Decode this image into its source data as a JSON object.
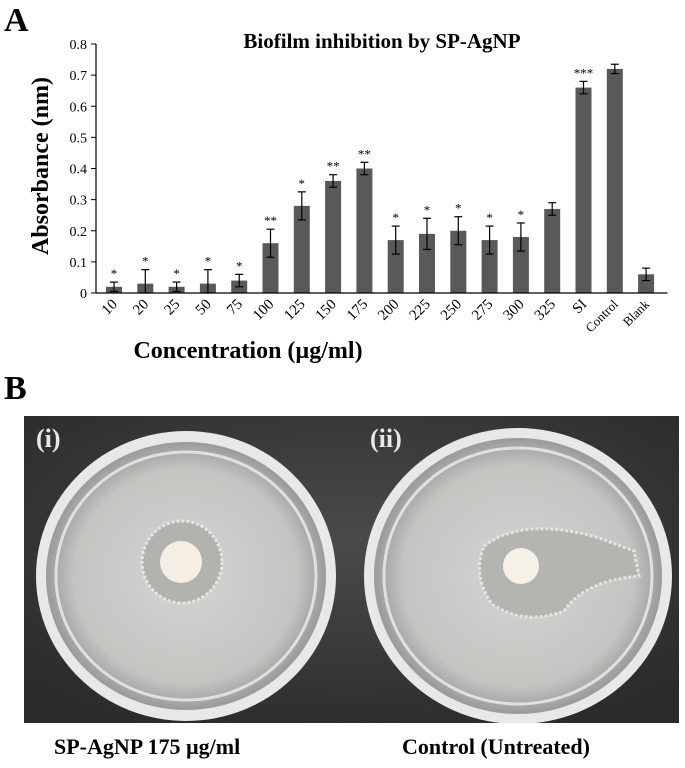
{
  "panel_a_label": "A",
  "panel_b_label": "B",
  "chart_data": {
    "type": "bar",
    "title": "Biofilm inhibition by SP-AgNP",
    "xlabel": "Concentration (µg/ml)",
    "ylabel": "Absorbance (nm)",
    "ylim": [
      0,
      0.8
    ],
    "yticks": [
      "0",
      "0.1",
      "0.2",
      "0.3",
      "0.4",
      "0.5",
      "0.6",
      "0.7",
      "0.8"
    ],
    "categories": [
      "10",
      "20",
      "25",
      "50",
      "75",
      "100",
      "125",
      "150",
      "175",
      "200",
      "225",
      "250",
      "275",
      "300",
      "325",
      "SI",
      "Control",
      "Blank"
    ],
    "values": [
      0.02,
      0.03,
      0.02,
      0.03,
      0.04,
      0.16,
      0.28,
      0.36,
      0.4,
      0.17,
      0.19,
      0.2,
      0.17,
      0.18,
      0.27,
      0.66,
      0.72,
      0.06
    ],
    "errors": [
      0.015,
      0.045,
      0.015,
      0.045,
      0.02,
      0.045,
      0.045,
      0.02,
      0.02,
      0.045,
      0.05,
      0.045,
      0.045,
      0.045,
      0.02,
      0.02,
      0.015,
      0.02
    ],
    "significance": [
      "*",
      "*",
      "*",
      "*",
      "*",
      "**",
      "*",
      "**",
      "**",
      "*",
      "*",
      "*",
      "*",
      "*",
      "",
      "***",
      "",
      ""
    ],
    "bar_color": "#595959",
    "grid": false
  },
  "photo": {
    "left_label": "(i)",
    "right_label": "(ii)",
    "left_caption": "SP-AgNP 175 µg/ml",
    "right_caption": "Control (Untreated)",
    "background_color": "#3a3a3a",
    "dish_color": "#c9c9c6"
  }
}
